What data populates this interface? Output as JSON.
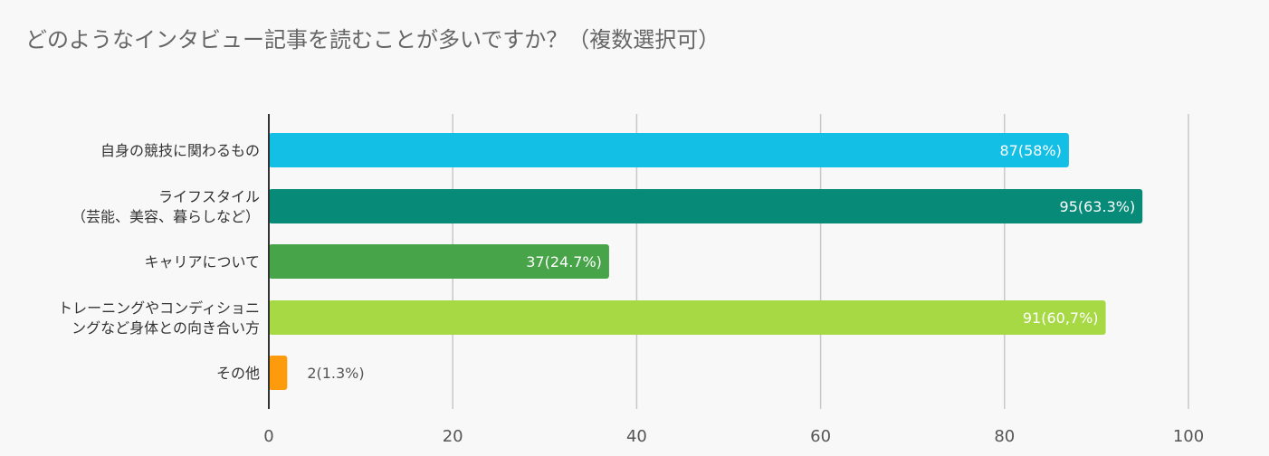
{
  "chart_data": {
    "type": "bar",
    "orientation": "horizontal",
    "title": "どのようなインタビュー記事を読むことが多いですか？（複数選択可）",
    "xlabel": "",
    "ylabel": "",
    "xlim": [
      0,
      100
    ],
    "xticks": [
      0,
      20,
      40,
      60,
      80,
      100
    ],
    "grid": true,
    "legend": "none",
    "categories": [
      [
        "自身の競技に関わるもの"
      ],
      [
        "ライフスタイル",
        "（芸能、美容、暮らしなど）"
      ],
      [
        "キャリアについて"
      ],
      [
        "トレーニングやコンディショニ",
        "ングなど身体との向き合い方"
      ],
      [
        "その他"
      ]
    ],
    "values": [
      87,
      95,
      37,
      91,
      2
    ],
    "data_labels": [
      "87(58%)",
      "95(63.3%)",
      "37(24.7%)",
      "91(60,7%)",
      "2(1.3%)"
    ],
    "colors": [
      "#13bfe5",
      "#078a77",
      "#47a449",
      "#a7d944",
      "#fd9b0c"
    ]
  }
}
